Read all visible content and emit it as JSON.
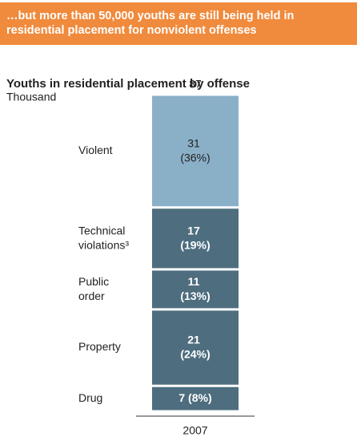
{
  "chart_data": {
    "type": "stacked_bar",
    "header": "…but more than 50,000 youths are still being held in residential placement for nonviolent offenses",
    "title": "Youths in residential placement by offense",
    "unit": "Thousand",
    "categories": [
      "2007"
    ],
    "total": 87,
    "series": [
      {
        "name": "Drug",
        "color": "#4e6e7f",
        "label_color": "#ffffff",
        "values": [
          7
        ],
        "value_labels": [
          "7 (8%)"
        ]
      },
      {
        "name": "Property",
        "color": "#4e6e7f",
        "label_color": "#ffffff",
        "values": [
          21
        ],
        "value_labels": [
          "21 (24%)"
        ]
      },
      {
        "name": "Public order",
        "color": "#4e6e7f",
        "label_color": "#ffffff",
        "values": [
          11
        ],
        "value_labels": [
          "11 (13%)"
        ]
      },
      {
        "name": "Technical violations³",
        "color": "#4e6e7f",
        "label_color": "#ffffff",
        "values": [
          17
        ],
        "value_labels": [
          "17 (19%)"
        ]
      },
      {
        "name": "Violent",
        "color": "#8ab0c8",
        "label_color": "#222222",
        "values": [
          31
        ],
        "value_labels": [
          "31 (36%)"
        ]
      }
    ]
  }
}
